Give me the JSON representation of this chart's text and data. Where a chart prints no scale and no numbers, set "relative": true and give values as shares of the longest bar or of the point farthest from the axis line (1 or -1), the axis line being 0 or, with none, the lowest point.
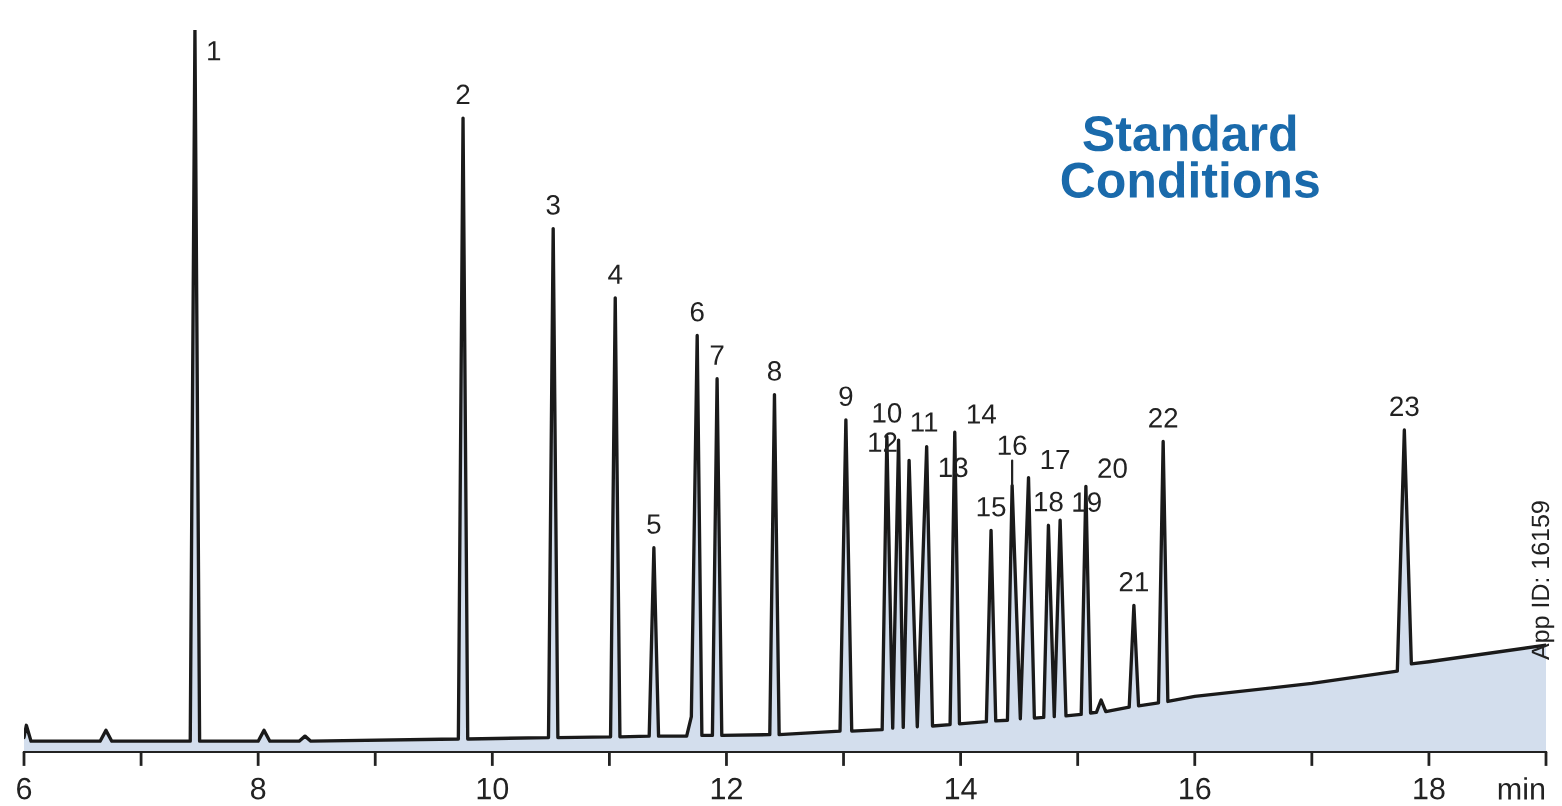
{
  "chart_data": {
    "type": "area",
    "relative": true,
    "title": "Standard Conditions",
    "xlabel": "min",
    "xlim": [
      6,
      19
    ],
    "xticks": [
      6,
      {
        "value": 7,
        "label": null
      },
      8,
      {
        "value": 9,
        "label": null
      },
      10,
      {
        "value": 11,
        "label": null
      },
      12,
      {
        "value": 13,
        "label": null
      },
      14,
      {
        "value": 15,
        "label": null
      },
      16,
      {
        "value": 17,
        "label": null
      },
      18,
      {
        "value": 19,
        "label": null
      }
    ],
    "grid": false,
    "legend": false,
    "marker": "none",
    "line_style": "solid",
    "series": [
      {
        "color": "#d3deed",
        "x": [
          6.0,
          6.02,
          6.06,
          6.65,
          6.7,
          6.75,
          7.42,
          7.46,
          7.5,
          8.0,
          8.05,
          8.1,
          8.35,
          8.4,
          8.45,
          9.71,
          9.75,
          9.79,
          10.48,
          10.52,
          10.56,
          11.01,
          11.05,
          11.09,
          11.34,
          11.38,
          11.42,
          11.66,
          11.7,
          11.75,
          11.79,
          11.88,
          11.92,
          11.96,
          12.37,
          12.41,
          12.45,
          12.97,
          13.02,
          13.07,
          13.33,
          13.37,
          13.42,
          13.47,
          13.51,
          13.56,
          13.63,
          13.71,
          13.76,
          13.91,
          13.95,
          13.99,
          14.22,
          14.26,
          14.3,
          14.4,
          14.44,
          14.51,
          14.58,
          14.63,
          14.71,
          14.75,
          14.8,
          14.85,
          14.9,
          15.03,
          15.07,
          15.11,
          15.16,
          15.2,
          15.24,
          15.44,
          15.48,
          15.52,
          15.69,
          15.73,
          15.77,
          16.0,
          17.0,
          17.73,
          17.79,
          17.85,
          18.0,
          19.0
        ],
        "values": [
          0.02,
          0.037,
          0.015,
          0.015,
          0.03,
          0.015,
          0.015,
          1.0,
          0.015,
          0.015,
          0.03,
          0.015,
          0.015,
          0.022,
          0.015,
          0.018,
          0.878,
          0.018,
          0.02,
          0.725,
          0.02,
          0.021,
          0.629,
          0.021,
          0.022,
          0.283,
          0.022,
          0.022,
          0.049,
          0.577,
          0.023,
          0.023,
          0.517,
          0.023,
          0.024,
          0.495,
          0.024,
          0.029,
          0.46,
          0.029,
          0.031,
          0.437,
          0.033,
          0.432,
          0.034,
          0.404,
          0.035,
          0.423,
          0.036,
          0.038,
          0.443,
          0.039,
          0.042,
          0.307,
          0.043,
          0.044,
          0.369,
          0.046,
          0.38,
          0.047,
          0.048,
          0.314,
          0.049,
          0.321,
          0.05,
          0.052,
          0.368,
          0.054,
          0.055,
          0.072,
          0.056,
          0.062,
          0.203,
          0.064,
          0.068,
          0.43,
          0.07,
          0.077,
          0.095,
          0.112,
          0.446,
          0.122,
          0.125,
          0.148
        ]
      }
    ],
    "annotations": [
      {
        "text": "1",
        "x": 7.46,
        "y": 1.0
      },
      {
        "text": "2",
        "x": 9.75,
        "y": 0.878
      },
      {
        "text": "3",
        "x": 10.52,
        "y": 0.725
      },
      {
        "text": "4",
        "x": 11.05,
        "y": 0.629
      },
      {
        "text": "5",
        "x": 11.38,
        "y": 0.283
      },
      {
        "text": "6",
        "x": 11.75,
        "y": 0.577
      },
      {
        "text": "7",
        "x": 11.92,
        "y": 0.517
      },
      {
        "text": "8",
        "x": 12.41,
        "y": 0.495
      },
      {
        "text": "9",
        "x": 13.02,
        "y": 0.46
      },
      {
        "text": "10",
        "x": 13.37,
        "y": 0.437
      },
      {
        "text": "11",
        "x": 13.47,
        "y": 0.432
      },
      {
        "text": "12",
        "x": 13.56,
        "y": 0.404
      },
      {
        "text": "13",
        "x": 13.71,
        "y": 0.423
      },
      {
        "text": "14",
        "x": 13.95,
        "y": 0.443
      },
      {
        "text": "15",
        "x": 14.26,
        "y": 0.307
      },
      {
        "text": "16",
        "x": 14.44,
        "y": 0.369
      },
      {
        "text": "17",
        "x": 14.58,
        "y": 0.38
      },
      {
        "text": "18",
        "x": 14.75,
        "y": 0.314
      },
      {
        "text": "19",
        "x": 14.85,
        "y": 0.321
      },
      {
        "text": "20",
        "x": 15.07,
        "y": 0.368
      },
      {
        "text": "21",
        "x": 15.48,
        "y": 0.203
      },
      {
        "text": "22",
        "x": 15.73,
        "y": 0.43
      },
      {
        "text": "23",
        "x": 17.79,
        "y": 0.446
      },
      "App ID: 16159"
    ]
  }
}
